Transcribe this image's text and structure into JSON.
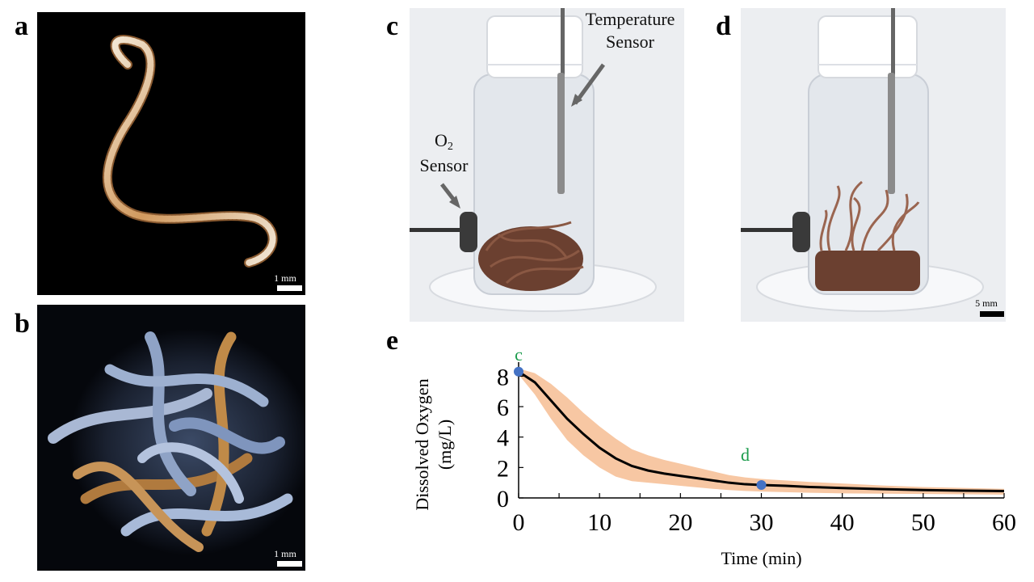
{
  "panels": {
    "a": {
      "letter": "a",
      "scale_label": "1 mm"
    },
    "b": {
      "letter": "b",
      "scale_label": "1 mm"
    },
    "c": {
      "letter": "c",
      "temp_sensor_label_line1": "Temperature",
      "temp_sensor_label_line2": "Sensor",
      "o2_label_main": "O",
      "o2_label_sub": "2",
      "o2_label_line2": "Sensor"
    },
    "d": {
      "letter": "d",
      "scale_label": "5 mm"
    },
    "e": {
      "letter": "e"
    }
  },
  "colors": {
    "band": "#f7c7a3",
    "line": "#000000",
    "marker": "#4472c4",
    "marker_label": "#1a9b4b"
  },
  "chart_data": {
    "type": "line",
    "title": "",
    "xlabel": "Time (min)",
    "ylabel_line1": "Dissolved Oxygen",
    "ylabel_line2": "(mg/L)",
    "xlim": [
      0,
      60
    ],
    "ylim": [
      0,
      8.5
    ],
    "xticks": [
      0,
      10,
      20,
      30,
      40,
      50,
      60
    ],
    "yticks": [
      0,
      2,
      4,
      6,
      8
    ],
    "series": [
      {
        "name": "mean",
        "x": [
          0,
          2,
          4,
          6,
          8,
          10,
          12,
          14,
          16,
          18,
          20,
          22,
          24,
          26,
          28,
          30,
          33,
          36,
          40,
          45,
          50,
          55,
          60
        ],
        "y": [
          8.3,
          7.6,
          6.4,
          5.2,
          4.2,
          3.3,
          2.6,
          2.1,
          1.8,
          1.6,
          1.45,
          1.3,
          1.15,
          1.0,
          0.9,
          0.85,
          0.8,
          0.72,
          0.65,
          0.58,
          0.52,
          0.48,
          0.45
        ]
      },
      {
        "name": "upper",
        "x": [
          0,
          2,
          4,
          6,
          8,
          10,
          12,
          14,
          16,
          18,
          20,
          22,
          24,
          26,
          28,
          30,
          33,
          36,
          40,
          45,
          50,
          55,
          60
        ],
        "y": [
          8.5,
          8.2,
          7.5,
          6.6,
          5.6,
          4.7,
          3.9,
          3.2,
          2.8,
          2.5,
          2.25,
          2.0,
          1.75,
          1.5,
          1.35,
          1.25,
          1.15,
          1.05,
          0.95,
          0.82,
          0.72,
          0.66,
          0.6
        ]
      },
      {
        "name": "lower",
        "x": [
          0,
          2,
          4,
          6,
          8,
          10,
          12,
          14,
          16,
          18,
          20,
          22,
          24,
          26,
          28,
          30,
          33,
          36,
          40,
          45,
          50,
          55,
          60
        ],
        "y": [
          8.1,
          6.8,
          5.2,
          3.8,
          2.8,
          2.0,
          1.4,
          1.1,
          1.0,
          0.9,
          0.8,
          0.7,
          0.6,
          0.52,
          0.46,
          0.42,
          0.38,
          0.34,
          0.3,
          0.28,
          0.26,
          0.24,
          0.22
        ]
      }
    ],
    "markers": [
      {
        "label": "c",
        "x": 0,
        "y": 8.3
      },
      {
        "label": "d",
        "x": 30,
        "y": 0.85
      }
    ]
  }
}
